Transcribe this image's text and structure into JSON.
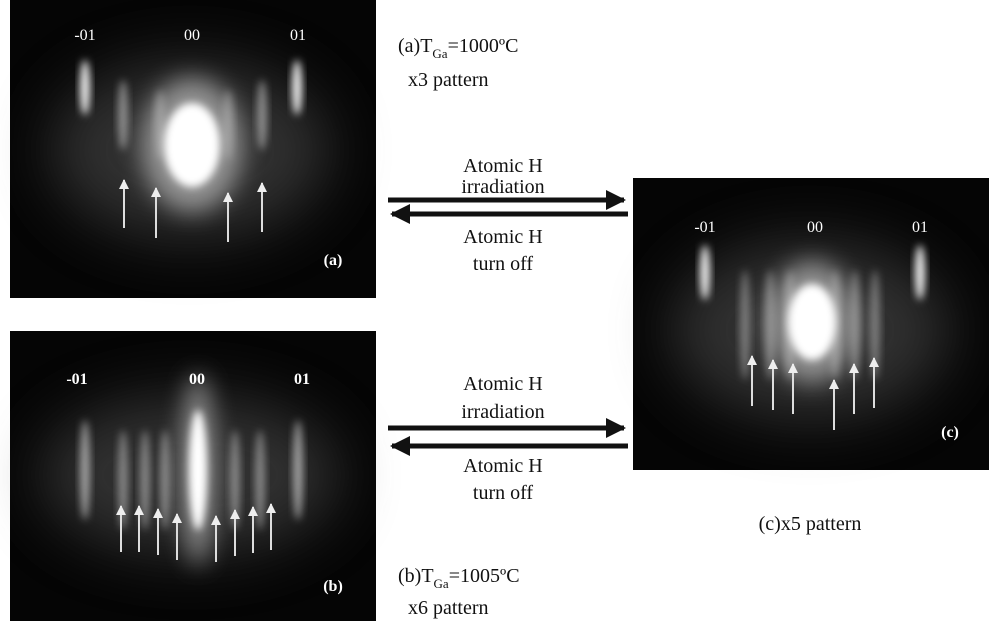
{
  "panels": [
    {
      "labels": [
        "-01",
        "00",
        "01"
      ],
      "letter": "(a)"
    },
    {
      "labels": [
        "-01",
        "00",
        "01"
      ],
      "letter": "(b)"
    },
    {
      "labels": [
        "-01",
        "00",
        "01"
      ],
      "letter": "(c)"
    }
  ],
  "captions": {
    "a": {
      "prefix": "(a)T",
      "sub": "Ga",
      "suffix": "=1000ºC",
      "line2": "x3 pattern"
    },
    "b": {
      "prefix": "(b)T",
      "sub": "Ga",
      "suffix": "=1005ºC",
      "line2": "x6 pattern"
    },
    "c": "(c)x5 pattern"
  },
  "arrows": [
    {
      "top": [
        "Atomic H",
        "irradiation"
      ],
      "bottom": [
        "Atomic H",
        "turn off"
      ]
    },
    {
      "top": [
        "Atomic H",
        "irradiation"
      ],
      "bottom": [
        "Atomic H",
        "turn off"
      ]
    }
  ]
}
